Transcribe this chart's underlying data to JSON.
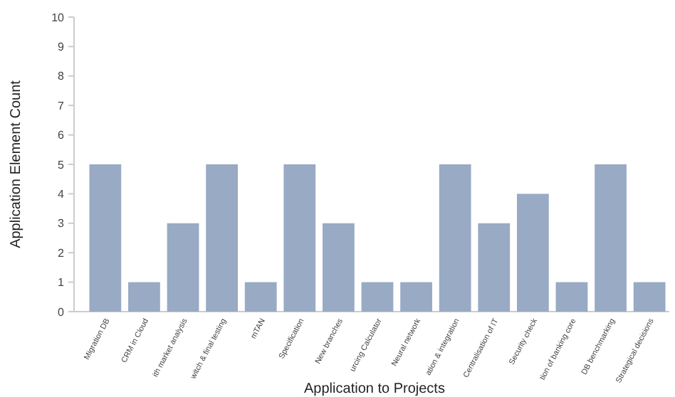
{
  "chart_data": {
    "type": "bar",
    "xlabel": "Application to Projects",
    "ylabel": "Application Element Count",
    "categories": [
      "Migration DB",
      "CRM in Cloud",
      "ith market analysis",
      "witch & final testing",
      "mTAN",
      "Specification",
      "New branches",
      "urcing Calculator",
      "Neural network",
      "ation & integration",
      "Centralisation of IT",
      "Security check",
      "tion of banking core",
      "DB benchmarking",
      "Strategical decisions"
    ],
    "values": [
      5,
      1,
      3,
      5,
      1,
      5,
      3,
      1,
      1,
      5,
      3,
      4,
      1,
      5,
      1
    ],
    "color": "#98aac4",
    "ylim": [
      0,
      10
    ],
    "yticks": [
      0,
      1,
      2,
      3,
      4,
      5,
      6,
      7,
      8,
      9,
      10
    ],
    "grid": false
  }
}
